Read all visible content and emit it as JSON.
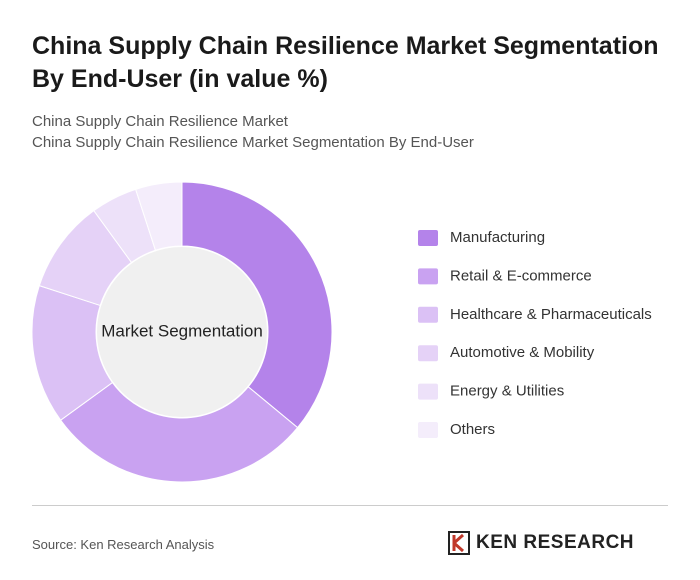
{
  "chart_data": {
    "type": "donut",
    "title": "China Supply Chain Resilience Market Segmentation By End-User (in value %)",
    "subtitle_lines": [
      "China Supply Chain Resilience Market",
      "China Supply Chain Resilience Market Segmentation By End-User"
    ],
    "center_label": "Market Segmentation",
    "categories": [
      "Manufacturing",
      "Retail & E-commerce",
      "Healthcare & Pharmaceuticals",
      "Automotive & Mobility",
      "Energy & Utilities",
      "Others"
    ],
    "values": [
      36,
      29,
      15,
      10,
      5,
      5
    ],
    "colors": [
      "#b483ea",
      "#c9a2f1",
      "#dbc1f5",
      "#e5d2f7",
      "#ede1f9",
      "#f4edfb"
    ],
    "legend": "right"
  },
  "footer": {
    "source": "Source: Ken Research Analysis",
    "logo": "KEN RESEARCH"
  }
}
